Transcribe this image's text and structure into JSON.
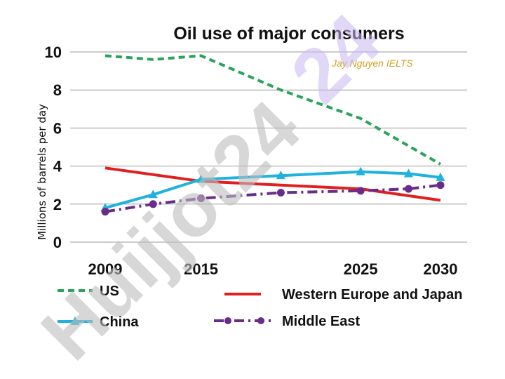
{
  "colors": {
    "us": "#2aa35a",
    "weu": "#e02020",
    "china": "#1fb2dc",
    "middle_east": "#6a2c8c",
    "grid": "#9a9a9a",
    "watermark_gray": "#bdbdbd",
    "watermark_violet": "#c9b8f0",
    "credit": "#d4a020"
  },
  "watermarks": {
    "diagonal_text": "Huijjot24",
    "credit_text": "Jay Nguyen IELTS"
  },
  "chart_data": {
    "type": "line",
    "title": "Oil use of major consumers",
    "ylabel": "Millions of barrels per day",
    "xlabel": "",
    "ylim": [
      0,
      10
    ],
    "yticks": [
      0,
      2,
      4,
      6,
      8,
      10
    ],
    "xlim": [
      2009,
      2030
    ],
    "xticks": [
      2009,
      2015,
      2025,
      2030
    ],
    "grid": true,
    "legend_position": "bottom",
    "series": [
      {
        "key": "us",
        "name": "US",
        "style": "dashed",
        "marker": "none",
        "x": [
          2009,
          2012,
          2015,
          2020,
          2025,
          2030
        ],
        "y": [
          9.8,
          9.6,
          9.8,
          8.0,
          6.5,
          4.1
        ]
      },
      {
        "key": "weu",
        "name": "Western Europe and Japan",
        "style": "solid",
        "marker": "none",
        "x": [
          2009,
          2015,
          2020,
          2025,
          2030
        ],
        "y": [
          3.9,
          3.2,
          3.0,
          2.8,
          2.2
        ]
      },
      {
        "key": "china",
        "name": "China",
        "style": "solid",
        "marker": "triangle",
        "x": [
          2009,
          2012,
          2015,
          2020,
          2025,
          2028,
          2030
        ],
        "y": [
          1.8,
          2.5,
          3.3,
          3.5,
          3.7,
          3.6,
          3.4
        ]
      },
      {
        "key": "middle_east",
        "name": "Middle East",
        "style": "dashdot",
        "marker": "circle",
        "x": [
          2009,
          2012,
          2015,
          2020,
          2025,
          2028,
          2030
        ],
        "y": [
          1.6,
          2.0,
          2.3,
          2.6,
          2.7,
          2.8,
          3.0
        ]
      }
    ]
  }
}
